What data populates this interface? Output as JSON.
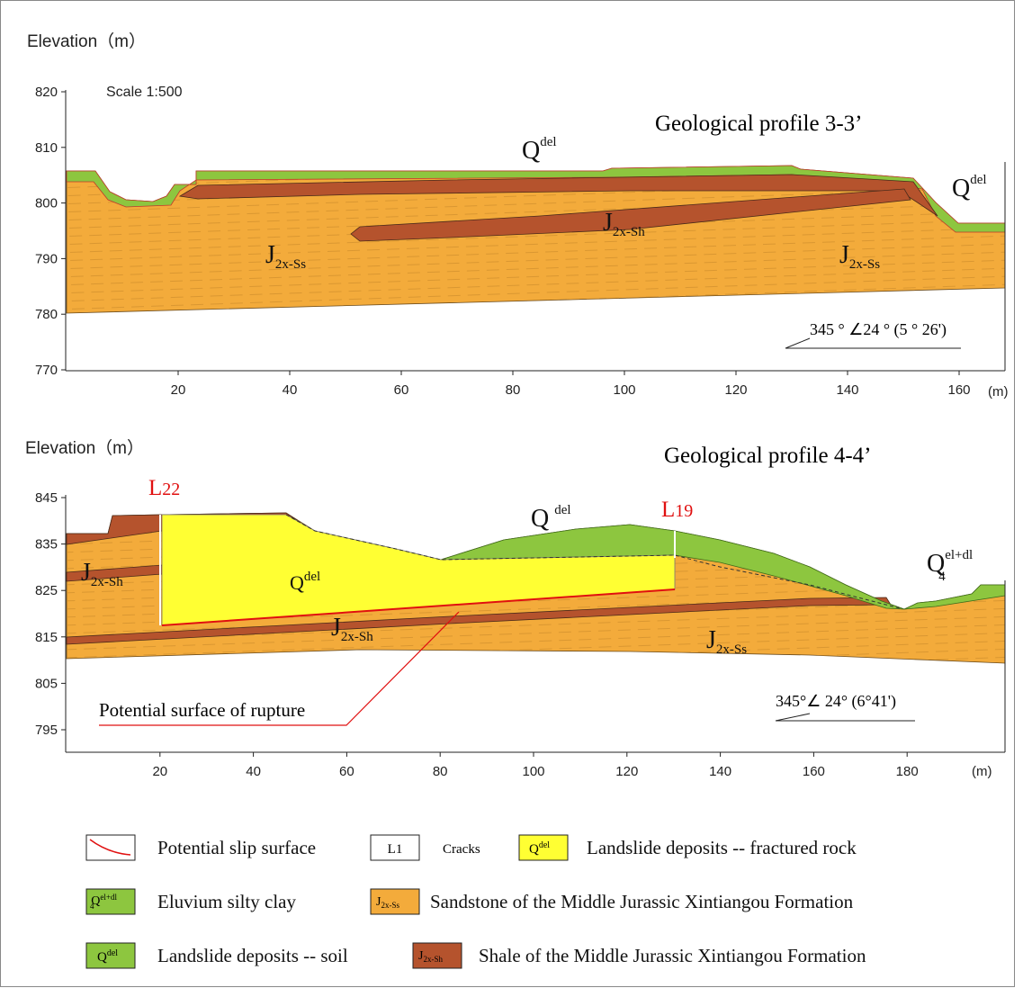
{
  "profiles": [
    {
      "y_label": "Elevation（m）",
      "scale": "Scale 1:500",
      "title": "Geological profile 3-3’",
      "x_unit": "(m)",
      "yticks": [
        770,
        780,
        790,
        800,
        810,
        820
      ],
      "xticks": [
        20,
        40,
        60,
        80,
        100,
        120,
        140,
        160
      ],
      "labels": [
        {
          "main": "Q",
          "sup": "del"
        },
        {
          "main": "Q",
          "sup": "del"
        },
        {
          "main": "J",
          "sub": "2x-Sh"
        },
        {
          "main": "J",
          "sub": "2x-Ss"
        },
        {
          "main": "J",
          "sub": "2x-Ss"
        }
      ],
      "attitude": "345 ° ∠24 ° (5 ° 26')"
    },
    {
      "y_label": "Elevation（m）",
      "title": "Geological profile 4-4’",
      "x_unit": "(m)",
      "yticks": [
        795,
        805,
        815,
        825,
        835,
        845
      ],
      "xticks": [
        20,
        40,
        60,
        80,
        100,
        120,
        140,
        160,
        180
      ],
      "cracks": [
        {
          "main": "L",
          "sub": "22"
        },
        {
          "main": "L",
          "sub": "19"
        }
      ],
      "labels": [
        {
          "main": "Q",
          "sup": "del"
        },
        {
          "main": "Q",
          "sub": "4",
          "sup": "el+dl"
        },
        {
          "main": "J",
          "sub": "2x-Sh"
        },
        {
          "main": "Q",
          "sup": "del"
        },
        {
          "main": "J",
          "sub": "2x-Sh"
        },
        {
          "main": "J",
          "sub": "2x-Ss"
        }
      ],
      "rupture_label": "Potential surface of rupture",
      "attitude": "345°∠ 24° (6°41')"
    }
  ],
  "legend": [
    [
      {
        "text": "Potential slip surface"
      },
      {
        "symbol": {
          "main": "L1"
        },
        "text": "Cracks"
      },
      {
        "symbol": {
          "main": "Q",
          "sup": "del"
        },
        "text": "Landslide deposits -- fractured rock"
      }
    ],
    [
      {
        "symbol": {
          "main": "Q",
          "sub": "4",
          "sup": "el+dl"
        },
        "text": "Eluvium silty clay"
      },
      {
        "symbol": {
          "main": "J",
          "sub": "2x-Ss"
        },
        "text": "Sandstone of the Middle Jurassic Xintiangou Formation"
      }
    ],
    [
      {
        "symbol": {
          "main": "Q",
          "sup": "del"
        },
        "text": "Landslide deposits -- soil"
      },
      {
        "symbol": {
          "main": "J",
          "sub": "2x-Sh"
        },
        "text": "Shale of the Middle Jurassic Xintiangou Formation"
      }
    ]
  ]
}
